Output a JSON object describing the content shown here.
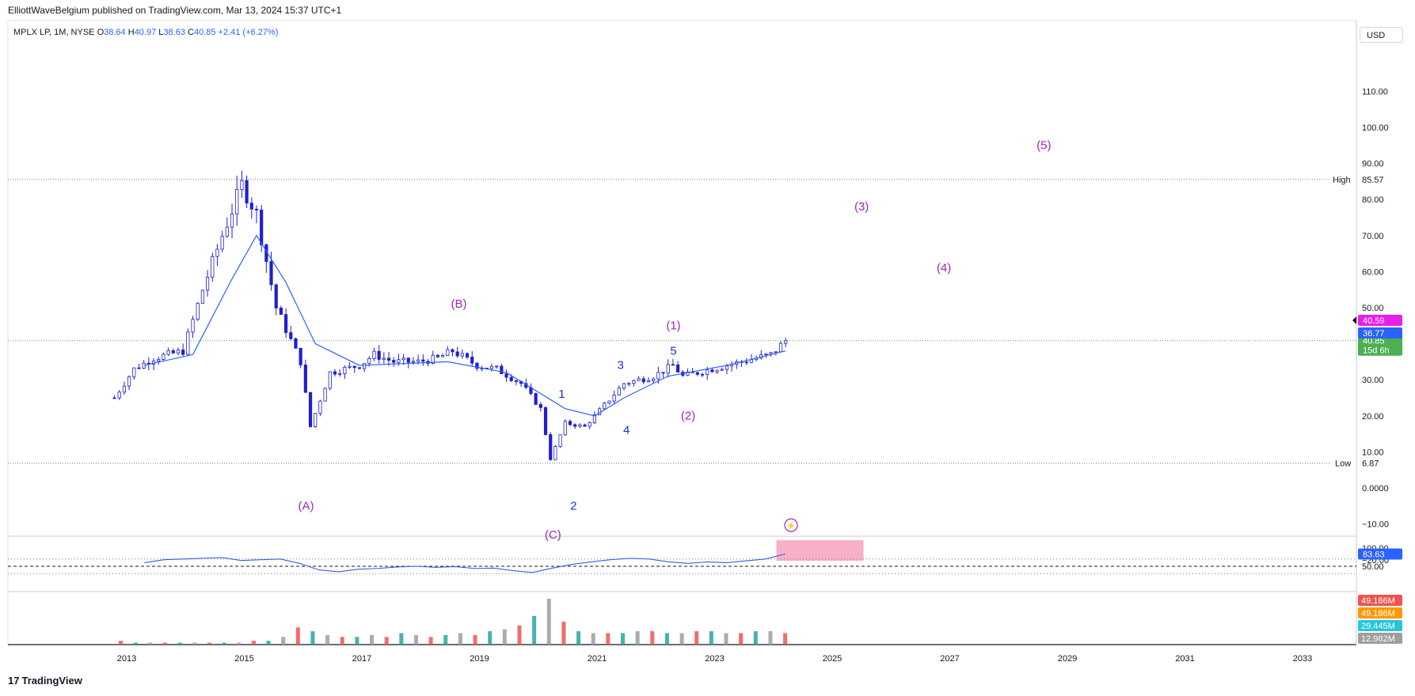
{
  "publisher": "ElliottWaveBelgium published on TradingView.com, Mar 13, 2024 15:37 UTC+1",
  "legend": {
    "symbol": "MPLX LP, 1M, NYSE",
    "open_label": "O",
    "open": "38.64",
    "high_label": "H",
    "high": "40.97",
    "low_label": "L",
    "low": "38.63",
    "close_label": "C",
    "close": "40.85",
    "change": "+2.41 (+6.27%)"
  },
  "currency": "USD",
  "footer": "TradingView",
  "colors": {
    "candle": "#1f1fd1",
    "ma": "#2962ff",
    "wave_major": "#9c27b0",
    "wave_minor": "#1d2fd6",
    "rsi_line": "#3b5bdb",
    "overbought_fill": "#f48fb1",
    "up_volume": "#ef5350",
    "down_volume": "#26a69a"
  },
  "chart_data": [
    {
      "type": "candlestick",
      "interval": "1M",
      "ylim": [
        -25,
        115
      ],
      "y_ticks": [
        "110.00",
        "100.00",
        "90.00",
        "80.00",
        "70.00",
        "60.00",
        "50.00",
        "40.00",
        "30.00",
        "20.00",
        "10.00",
        "0.0000",
        "−10.00",
        "−20.00"
      ],
      "x_ticks": [
        "2013",
        "2015",
        "2017",
        "2019",
        "2021",
        "2023",
        "2025",
        "2027",
        "2029",
        "2031",
        "2033"
      ],
      "high_line": {
        "label": "High",
        "value": "85.57"
      },
      "low_line": {
        "label": "Low",
        "value": "6.87"
      },
      "price_labels": [
        {
          "value": "40.85",
          "sub": "15d 6h",
          "color": "#4caf50"
        },
        {
          "value": "40.59",
          "color": "#e91ee9"
        },
        {
          "value": "36.77",
          "color": "#2962ff"
        }
      ],
      "series": [
        {
          "name": "MPLX LP",
          "points": [
            [
              "2012-10",
              25
            ],
            [
              "2013-02",
              33
            ],
            [
              "2013-06",
              36
            ],
            [
              "2013-12",
              38
            ],
            [
              "2014-04",
              55
            ],
            [
              "2014-08",
              70
            ],
            [
              "2014-12",
              84
            ],
            [
              "2015-03",
              76
            ],
            [
              "2015-07",
              50
            ],
            [
              "2015-12",
              35
            ],
            [
              "2016-02",
              17
            ],
            [
              "2016-06",
              32
            ],
            [
              "2016-12",
              34
            ],
            [
              "2017-03",
              37
            ],
            [
              "2017-07",
              35
            ],
            [
              "2017-12",
              35
            ],
            [
              "2018-04",
              36
            ],
            [
              "2018-07",
              38
            ],
            [
              "2018-12",
              34
            ],
            [
              "2019-04",
              33
            ],
            [
              "2019-09",
              29
            ],
            [
              "2020-01",
              22
            ],
            [
              "2020-03",
              8
            ],
            [
              "2020-06",
              18
            ],
            [
              "2020-10",
              17
            ],
            [
              "2021-02",
              23
            ],
            [
              "2021-06",
              29
            ],
            [
              "2021-12",
              31
            ],
            [
              "2022-04",
              34
            ],
            [
              "2022-06",
              31
            ],
            [
              "2022-12",
              33
            ],
            [
              "2023-06",
              35
            ],
            [
              "2023-12",
              37
            ],
            [
              "2024-03",
              40.85
            ]
          ]
        },
        {
          "name": "MA",
          "points": [
            [
              "2013-04",
              34
            ],
            [
              "2014-02",
              37
            ],
            [
              "2014-10",
              58
            ],
            [
              "2015-03",
              70
            ],
            [
              "2015-09",
              57
            ],
            [
              "2016-03",
              40
            ],
            [
              "2016-12",
              34
            ],
            [
              "2018-06",
              35
            ],
            [
              "2019-06",
              32
            ],
            [
              "2020-06",
              22
            ],
            [
              "2020-12",
              20
            ],
            [
              "2021-06",
              25
            ],
            [
              "2022-03",
              31
            ],
            [
              "2023-03",
              34
            ],
            [
              "2024-03",
              38
            ]
          ]
        }
      ],
      "annotations": [
        {
          "text": "(A)",
          "level": "major"
        },
        {
          "text": "(B)",
          "level": "major"
        },
        {
          "text": "(C)",
          "level": "major"
        },
        {
          "text": "1",
          "level": "minor"
        },
        {
          "text": "2",
          "level": "minor"
        },
        {
          "text": "3",
          "level": "minor"
        },
        {
          "text": "4",
          "level": "minor"
        },
        {
          "text": "5",
          "level": "minor"
        },
        {
          "text": "(1)",
          "level": "major"
        },
        {
          "text": "(2)",
          "level": "major"
        },
        {
          "text": "(3)",
          "level": "major"
        },
        {
          "text": "(4)",
          "level": "major"
        },
        {
          "text": "(5)",
          "level": "major"
        }
      ]
    },
    {
      "type": "line",
      "name": "RSI",
      "ylim": [
        0,
        100
      ],
      "y_ticks": [
        "100.00",
        "50.00"
      ],
      "current": "83.63",
      "values": [
        60,
        68,
        70,
        72,
        74,
        66,
        68,
        70,
        58,
        40,
        35,
        42,
        44,
        48,
        50,
        47,
        49,
        44,
        45,
        38,
        33,
        45,
        55,
        62,
        68,
        72,
        70,
        62,
        58,
        62,
        60,
        65,
        70,
        84
      ]
    },
    {
      "type": "bar",
      "name": "Volume",
      "value_labels": [
        {
          "value": "49.186M",
          "color": "#ef5350"
        },
        {
          "value": "49.186M",
          "color": "#ff9800"
        },
        {
          "value": "29.445M",
          "color": "#26c6da"
        },
        {
          "value": "12.982M",
          "color": "#9e9e9e"
        }
      ],
      "values": [
        2,
        1,
        1,
        1,
        1,
        1,
        1,
        1,
        1,
        2,
        2,
        4,
        9,
        7,
        5,
        4,
        4,
        5,
        4,
        6,
        5,
        4,
        5,
        6,
        5,
        7,
        8,
        10,
        15,
        24,
        12,
        7,
        6,
        6,
        6,
        7,
        7,
        6,
        6,
        7,
        7,
        6,
        6,
        7,
        7,
        6
      ]
    }
  ]
}
